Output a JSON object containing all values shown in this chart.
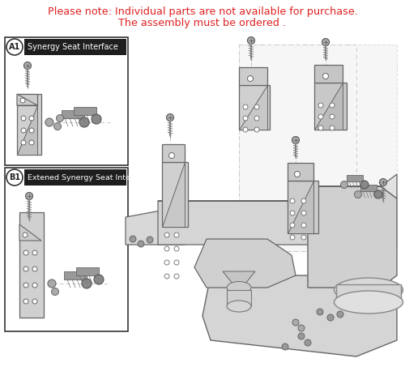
{
  "title_line1": "Please note: Individual parts are not available for purchase.",
  "title_line2": "The assembly must be ordered .",
  "title_color": "#e02020",
  "title_fontsize": 9.2,
  "bg_color": "#ffffff",
  "box_a1_label": "A1",
  "box_a1_title": "Synergy Seat Interface",
  "box_b1_label": "B1",
  "box_b1_title": "Extened Synergy Seat Interface",
  "box_border_color": "#333333",
  "box_label_bg": "#ffffff",
  "box_label_color": "#333333",
  "box_title_bg": "#2a2a2a",
  "box_title_color": "#ffffff",
  "part_light": "#e0e0e0",
  "part_mid": "#c8c8c8",
  "part_dark": "#aaaaaa",
  "part_edge": "#666666",
  "screw_color": "#888888",
  "hole_color": "#ffffff",
  "dashed_color": "#bbbbbb",
  "bolt_body": "#909090",
  "bolt_head": "#787878"
}
